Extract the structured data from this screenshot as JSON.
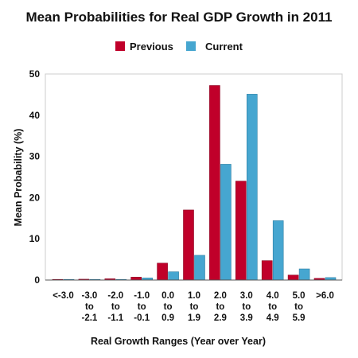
{
  "chart_data": {
    "type": "bar",
    "title": "Mean Probabilities for Real GDP Growth in 2011",
    "xlabel": "Real Growth Ranges (Year over Year)",
    "ylabel": "Mean Probability (%)",
    "ylim": [
      0,
      50
    ],
    "yticks": [
      "0",
      "10",
      "20",
      "30",
      "40",
      "50"
    ],
    "categories": [
      "<-3.0",
      "-3.0 to -2.1",
      "-2.0 to -1.1",
      "-1.0 to -0.1",
      "0.0 to 0.9",
      "1.0 to 1.9",
      "2.0 to 2.9",
      "3.0 to 3.9",
      "4.0 to 4.9",
      "5.0 to 5.9",
      ">6.0"
    ],
    "category_lines": [
      [
        "<-3.0"
      ],
      [
        "-3.0",
        "to",
        "-2.1"
      ],
      [
        "-2.0",
        "to",
        "-1.1"
      ],
      [
        "-1.0",
        "to",
        "-0.1"
      ],
      [
        "0.0",
        "to",
        "0.9"
      ],
      [
        "1.0",
        "to",
        "1.9"
      ],
      [
        "2.0",
        "to",
        "2.9"
      ],
      [
        "3.0",
        "to",
        "3.9"
      ],
      [
        "4.0",
        "to",
        "4.9"
      ],
      [
        "5.0",
        "to",
        "5.9"
      ],
      [
        ">6.0"
      ]
    ],
    "legend_position": "top-center",
    "grid": false,
    "series": [
      {
        "name": "Previous",
        "color": "#c0002a",
        "values": [
          0.1,
          0.2,
          0.3,
          0.7,
          4.1,
          17.0,
          47.2,
          24.0,
          4.7,
          1.2,
          0.4
        ]
      },
      {
        "name": "Current",
        "color": "#46a6d0",
        "values": [
          0.0,
          0.1,
          0.1,
          0.5,
          2.0,
          6.0,
          28.1,
          45.1,
          14.4,
          2.7,
          0.6
        ]
      }
    ]
  }
}
